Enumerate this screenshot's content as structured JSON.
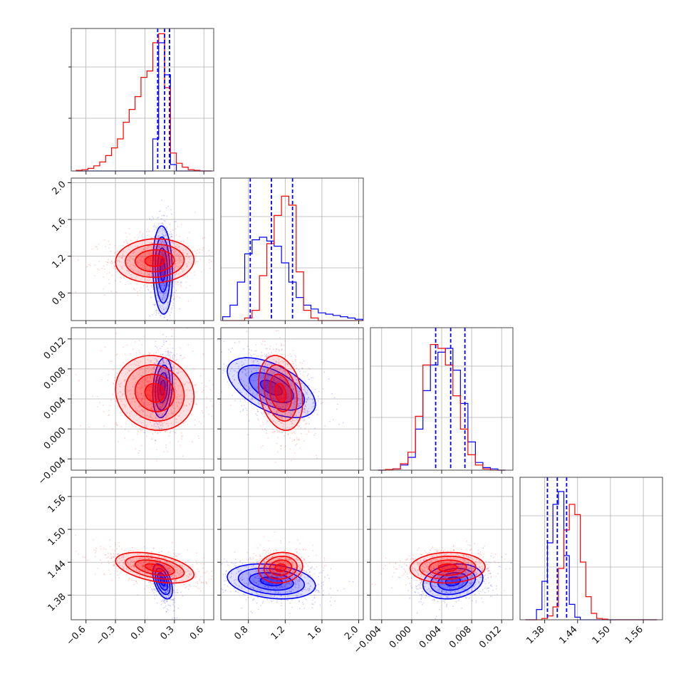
{
  "chart_data": {
    "type": "corner",
    "parameters": 4,
    "grid": true,
    "colors": {
      "series_a": "#0000ff",
      "series_b": "#ff0000"
    },
    "ranges": [
      [
        -0.75,
        0.7
      ],
      [
        0.5,
        2.05
      ],
      [
        -0.0055,
        0.0135
      ],
      [
        1.335,
        1.595
      ]
    ],
    "ticks": [
      [
        "−0.6",
        "−0.3",
        "0.0",
        "0.3",
        "0.6"
      ],
      [
        "0.8",
        "1.2",
        "1.6",
        "2.0"
      ],
      [
        "−0.004",
        "0.000",
        "0.004",
        "0.008",
        "0.012"
      ],
      [
        "1.38",
        "1.44",
        "1.50",
        "1.56"
      ]
    ],
    "tick_values": [
      [
        -0.6,
        -0.3,
        0.0,
        0.3,
        0.6
      ],
      [
        0.8,
        1.2,
        1.6,
        2.0
      ],
      [
        -0.004,
        0.0,
        0.004,
        0.008,
        0.012
      ],
      [
        1.38,
        1.44,
        1.5,
        1.56
      ]
    ],
    "quantiles": [
      [
        0.13,
        0.2,
        0.25
      ],
      [
        0.82,
        1.05,
        1.28
      ],
      [
        0.0032,
        0.0052,
        0.0071
      ],
      [
        1.385,
        1.403,
        1.42
      ]
    ],
    "histograms": [
      {
        "bins": [
          -0.7,
          -0.64,
          -0.58,
          -0.52,
          -0.46,
          -0.4,
          -0.34,
          -0.28,
          -0.22,
          -0.16,
          -0.1,
          -0.04,
          0.02,
          0.08,
          0.14,
          0.2,
          0.26,
          0.32,
          0.38,
          0.44,
          0.5,
          0.56,
          0.62,
          0.68
        ],
        "series_a": [
          0,
          0,
          0,
          0,
          0,
          0,
          0,
          0,
          0,
          0,
          0,
          0,
          0,
          0.25,
          1.0,
          0.75,
          0.05,
          0,
          0,
          0,
          0,
          0,
          0
        ],
        "series_b": [
          0.005,
          0.01,
          0.02,
          0.04,
          0.07,
          0.12,
          0.18,
          0.25,
          0.38,
          0.48,
          0.58,
          0.73,
          0.78,
          1.0,
          1.07,
          0.65,
          0.14,
          0.06,
          0.03,
          0.01,
          0.005,
          0,
          0
        ]
      },
      {
        "bins": [
          0.52,
          0.6,
          0.68,
          0.76,
          0.84,
          0.92,
          1.0,
          1.08,
          1.16,
          1.24,
          1.32,
          1.4,
          1.48,
          1.56,
          1.64,
          1.72,
          1.8,
          1.88,
          1.96,
          2.04
        ],
        "series_a": [
          0.03,
          0.12,
          0.3,
          0.52,
          0.63,
          0.65,
          0.62,
          0.58,
          0.45,
          0.3,
          0.18,
          0.12,
          0.09,
          0.06,
          0.05,
          0.04,
          0.03,
          0.02,
          0.01
        ],
        "series_b": [
          0,
          0,
          0,
          0.02,
          0.08,
          0.35,
          0.6,
          0.82,
          0.97,
          0.9,
          0.38,
          0.08,
          0.02,
          0,
          0,
          0,
          0,
          0,
          0
        ]
      },
      {
        "bins": [
          -0.0045,
          -0.0035,
          -0.0025,
          -0.0015,
          -0.0005,
          0.0005,
          0.0015,
          0.0025,
          0.0035,
          0.0045,
          0.0055,
          0.0065,
          0.0075,
          0.0085,
          0.0095,
          0.0105,
          0.0115,
          0.0125
        ],
        "series_a": [
          0,
          0.005,
          0.01,
          0.04,
          0.1,
          0.32,
          0.62,
          0.82,
          0.92,
          0.95,
          0.78,
          0.52,
          0.22,
          0.06,
          0.02,
          0.01,
          0
        ],
        "series_b": [
          0,
          0.005,
          0.01,
          0.05,
          0.14,
          0.42,
          0.82,
          0.98,
          0.95,
          0.82,
          0.58,
          0.32,
          0.12,
          0.04,
          0.01,
          0,
          0
        ]
      },
      {
        "bins": [
          1.345,
          1.355,
          1.365,
          1.375,
          1.385,
          1.395,
          1.405,
          1.415,
          1.425,
          1.435,
          1.445,
          1.455,
          1.465,
          1.475,
          1.485,
          1.495,
          1.505,
          1.515,
          1.525,
          1.535,
          1.545,
          1.555,
          1.565,
          1.575,
          1.585
        ],
        "series_a": [
          0,
          0,
          0.08,
          0.3,
          0.6,
          0.9,
          1.0,
          0.5,
          0.12,
          0.02,
          0,
          0,
          0,
          0,
          0,
          0,
          0,
          0,
          0,
          0,
          0,
          0,
          0,
          0
        ],
        "series_b": [
          0,
          0,
          0,
          0.01,
          0.03,
          0.1,
          0.4,
          0.7,
          0.9,
          0.82,
          0.45,
          0.18,
          0.05,
          0.01,
          0.005,
          0,
          0,
          0,
          0,
          0,
          0,
          0,
          0,
          0
        ]
      }
    ],
    "posteriors": {
      "series_a": {
        "mean": [
          0.18,
          1.05,
          0.0055,
          1.405
        ],
        "sd": [
          0.05,
          0.24,
          0.002,
          0.016
        ],
        "corr": [
          [
            1,
            -0.1,
            0.2,
            -0.5
          ],
          [
            -0.1,
            1,
            -0.55,
            -0.25
          ],
          [
            0.2,
            -0.55,
            1,
            0.2
          ],
          [
            -0.5,
            -0.25,
            0.2,
            1
          ]
        ]
      },
      "series_b": {
        "mean": [
          0.1,
          1.15,
          0.0048,
          1.43
        ],
        "sd": [
          0.2,
          0.12,
          0.0025,
          0.014
        ],
        "corr": [
          [
            1,
            0.05,
            -0.1,
            -0.45
          ],
          [
            0.05,
            1,
            -0.25,
            0.1
          ],
          [
            -0.1,
            -0.25,
            1,
            0.05
          ],
          [
            -0.45,
            0.1,
            0.05,
            1
          ]
        ]
      }
    }
  }
}
